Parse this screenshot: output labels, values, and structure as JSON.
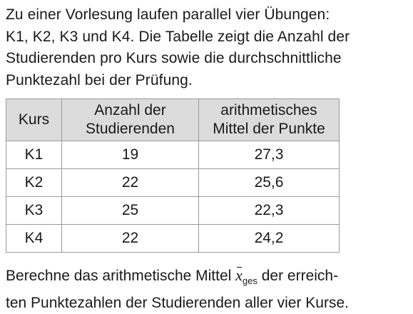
{
  "intro": {
    "lines": [
      "Zu einer Vorlesung laufen parallel vier Übungen:",
      "K1, K2, K3 und K4. Die Tabelle zeigt die Anzahl der",
      "Studierenden pro Kurs sowie die durchschnittliche",
      "Punktezahl bei der Prüfung."
    ]
  },
  "table": {
    "headers": {
      "kurs": "Kurs",
      "anzahl": [
        "Anzahl der",
        "Studierenden"
      ],
      "mittel": [
        "arithmetisches",
        "Mittel der Punkte"
      ]
    },
    "rows": [
      {
        "kurs": "K1",
        "anzahl": "19",
        "mittel": "27,3"
      },
      {
        "kurs": "K2",
        "anzahl": "22",
        "mittel": "25,6"
      },
      {
        "kurs": "K3",
        "anzahl": "25",
        "mittel": "22,3"
      },
      {
        "kurs": "K4",
        "anzahl": "22",
        "mittel": "24,2"
      }
    ],
    "header_background": "#dcdcdc",
    "border_color": "#9a9a9a"
  },
  "task": {
    "line1_before": "Berechne das arithmetische Mittel ",
    "symbol": "x",
    "symbol_subscript": "ges",
    "line1_after": " der erreich-",
    "line2": "ten Punktezahlen der Studierenden aller vier Kurse."
  }
}
